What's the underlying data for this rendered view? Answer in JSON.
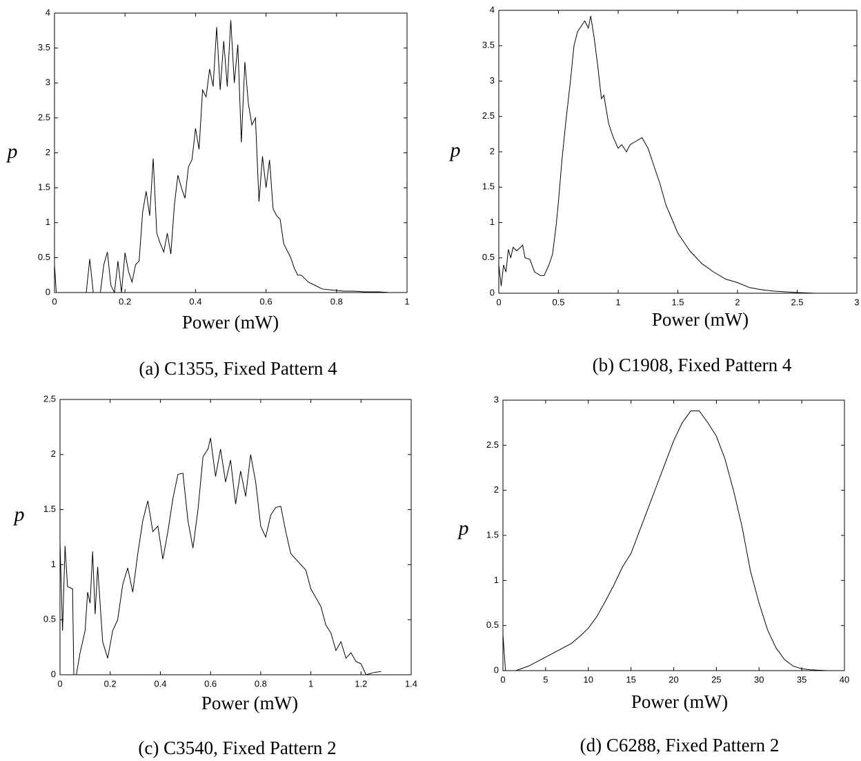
{
  "chart_data": [
    {
      "type": "line",
      "caption": "(a) C1355, Fixed Pattern 4",
      "xlabel": "Power (mW)",
      "ylabel": "p",
      "color": "#000000",
      "xlim": [
        0,
        1
      ],
      "ylim": [
        0,
        4
      ],
      "xticks": [
        0,
        0.2,
        0.4,
        0.6,
        0.8,
        1
      ],
      "yticks": [
        0,
        0.5,
        1,
        1.5,
        2,
        2.5,
        3,
        3.5,
        4
      ],
      "x": [
        0,
        0.005,
        0.09,
        0.1,
        0.11,
        0.13,
        0.14,
        0.15,
        0.16,
        0.17,
        0.18,
        0.19,
        0.2,
        0.21,
        0.22,
        0.23,
        0.24,
        0.25,
        0.26,
        0.27,
        0.28,
        0.29,
        0.3,
        0.31,
        0.32,
        0.33,
        0.34,
        0.35,
        0.36,
        0.37,
        0.38,
        0.39,
        0.4,
        0.41,
        0.42,
        0.43,
        0.44,
        0.45,
        0.46,
        0.47,
        0.48,
        0.49,
        0.5,
        0.51,
        0.52,
        0.53,
        0.54,
        0.55,
        0.56,
        0.57,
        0.58,
        0.59,
        0.6,
        0.61,
        0.62,
        0.63,
        0.64,
        0.65,
        0.66,
        0.67,
        0.68,
        0.69,
        0.7,
        0.72,
        0.74,
        0.76,
        0.78,
        0.8,
        0.82,
        0.85,
        0.88,
        0.92,
        0.95
      ],
      "values": [
        0.4,
        0,
        0,
        0.48,
        0,
        0,
        0.4,
        0.58,
        0.1,
        0,
        0.45,
        0,
        0.57,
        0.3,
        0.15,
        0.4,
        0.45,
        1.15,
        1.45,
        1.1,
        1.92,
        0.85,
        0.7,
        0.58,
        0.85,
        0.55,
        1.25,
        1.68,
        1.5,
        1.35,
        1.8,
        1.9,
        2.35,
        2.05,
        2.9,
        2.8,
        3.2,
        2.95,
        3.8,
        2.9,
        3.6,
        2.95,
        3.9,
        3.0,
        3.55,
        2.15,
        3.3,
        2.7,
        2.4,
        2.5,
        1.3,
        1.95,
        1.5,
        1.9,
        1.2,
        1.1,
        1.05,
        0.7,
        0.6,
        0.5,
        0.35,
        0.25,
        0.25,
        0.15,
        0.1,
        0.05,
        0.04,
        0.03,
        0.02,
        0.02,
        0.01,
        0.01,
        0
      ]
    },
    {
      "type": "line",
      "caption": "(b) C1908, Fixed Pattern 4",
      "xlabel": "Power (mW)",
      "ylabel": "p",
      "color": "#000000",
      "xlim": [
        0,
        3
      ],
      "ylim": [
        0,
        4
      ],
      "xticks": [
        0,
        0.5,
        1,
        1.5,
        2,
        2.5,
        3
      ],
      "yticks": [
        0,
        0.5,
        1,
        1.5,
        2,
        2.5,
        3,
        3.5,
        4
      ],
      "x": [
        0,
        0.02,
        0.04,
        0.06,
        0.08,
        0.1,
        0.12,
        0.15,
        0.2,
        0.22,
        0.26,
        0.3,
        0.35,
        0.38,
        0.42,
        0.45,
        0.48,
        0.5,
        0.53,
        0.56,
        0.6,
        0.63,
        0.66,
        0.7,
        0.72,
        0.75,
        0.77,
        0.8,
        0.83,
        0.86,
        0.88,
        0.92,
        0.96,
        1.0,
        1.03,
        1.07,
        1.1,
        1.15,
        1.2,
        1.25,
        1.3,
        1.35,
        1.4,
        1.45,
        1.5,
        1.6,
        1.7,
        1.8,
        1.9,
        2.0,
        2.1,
        2.2,
        2.3,
        2.4,
        2.5,
        2.65
      ],
      "values": [
        0.4,
        0.1,
        0.4,
        0.3,
        0.62,
        0.5,
        0.65,
        0.6,
        0.68,
        0.5,
        0.48,
        0.3,
        0.25,
        0.25,
        0.4,
        0.55,
        0.95,
        1.3,
        1.9,
        2.4,
        3.0,
        3.5,
        3.7,
        3.8,
        3.85,
        3.75,
        3.92,
        3.6,
        3.2,
        2.75,
        2.8,
        2.4,
        2.2,
        2.05,
        2.1,
        2.0,
        2.1,
        2.15,
        2.2,
        2.05,
        1.8,
        1.55,
        1.25,
        1.05,
        0.85,
        0.6,
        0.42,
        0.3,
        0.2,
        0.15,
        0.08,
        0.05,
        0.03,
        0.02,
        0.01,
        0
      ]
    },
    {
      "type": "line",
      "caption": "(c) C3540, Fixed Pattern 2",
      "xlabel": "Power (mW)",
      "ylabel": "p",
      "color": "#000000",
      "xlim": [
        0,
        1.4
      ],
      "ylim": [
        0,
        2.5
      ],
      "xticks": [
        0,
        0.2,
        0.4,
        0.6,
        0.8,
        1,
        1.2,
        1.4
      ],
      "yticks": [
        0,
        0.5,
        1,
        1.5,
        2,
        2.5
      ],
      "x": [
        0,
        0.01,
        0.02,
        0.03,
        0.05,
        0.055,
        0.065,
        0.08,
        0.1,
        0.11,
        0.12,
        0.13,
        0.14,
        0.15,
        0.17,
        0.19,
        0.21,
        0.23,
        0.25,
        0.27,
        0.29,
        0.31,
        0.33,
        0.35,
        0.37,
        0.39,
        0.41,
        0.43,
        0.45,
        0.47,
        0.49,
        0.51,
        0.53,
        0.55,
        0.57,
        0.59,
        0.6,
        0.62,
        0.64,
        0.66,
        0.68,
        0.7,
        0.72,
        0.74,
        0.76,
        0.78,
        0.8,
        0.82,
        0.84,
        0.86,
        0.88,
        0.9,
        0.92,
        0.94,
        0.96,
        0.98,
        1.0,
        1.02,
        1.04,
        1.06,
        1.08,
        1.1,
        1.12,
        1.14,
        1.16,
        1.18,
        1.2,
        1.22,
        1.25,
        1.28
      ],
      "values": [
        1.2,
        0.4,
        1.17,
        0.8,
        0.78,
        0,
        0,
        0.2,
        0.4,
        0.75,
        0.65,
        1.12,
        0.55,
        0.98,
        0.3,
        0.15,
        0.4,
        0.5,
        0.82,
        0.97,
        0.75,
        1.1,
        1.4,
        1.58,
        1.3,
        1.35,
        1.05,
        1.3,
        1.6,
        1.82,
        1.83,
        1.4,
        1.15,
        1.5,
        1.98,
        2.05,
        2.15,
        1.8,
        2.05,
        1.75,
        1.95,
        1.55,
        1.85,
        1.62,
        2.0,
        1.75,
        1.35,
        1.25,
        1.45,
        1.52,
        1.53,
        1.3,
        1.1,
        1.05,
        1.0,
        0.95,
        0.78,
        0.7,
        0.62,
        0.45,
        0.38,
        0.22,
        0.3,
        0.15,
        0.2,
        0.12,
        0.1,
        0,
        0.02,
        0.03
      ]
    },
    {
      "type": "line",
      "caption": "(d) C6288, Fixed Pattern 2",
      "xlabel": "Power (mW)",
      "ylabel": "p",
      "color": "#000000",
      "xlim": [
        0,
        40
      ],
      "ylim": [
        0,
        3
      ],
      "xticks": [
        0,
        5,
        10,
        15,
        20,
        25,
        30,
        35,
        40
      ],
      "yticks": [
        0,
        0.5,
        1,
        1.5,
        2,
        2.5,
        3
      ],
      "x": [
        0,
        0.3,
        1.5,
        3,
        5,
        7,
        8,
        9,
        10,
        11,
        12,
        13,
        14,
        15,
        16,
        17,
        18,
        19,
        20,
        21,
        22,
        23,
        24,
        25,
        26,
        27,
        28,
        29,
        30,
        31,
        32,
        33,
        34,
        35,
        36,
        38
      ],
      "values": [
        0.4,
        0,
        0,
        0.05,
        0.15,
        0.25,
        0.3,
        0.38,
        0.47,
        0.6,
        0.77,
        0.95,
        1.15,
        1.3,
        1.55,
        1.8,
        2.05,
        2.3,
        2.55,
        2.75,
        2.88,
        2.88,
        2.75,
        2.6,
        2.35,
        2.0,
        1.6,
        1.1,
        0.75,
        0.45,
        0.25,
        0.12,
        0.05,
        0.02,
        0.01,
        0
      ]
    }
  ]
}
